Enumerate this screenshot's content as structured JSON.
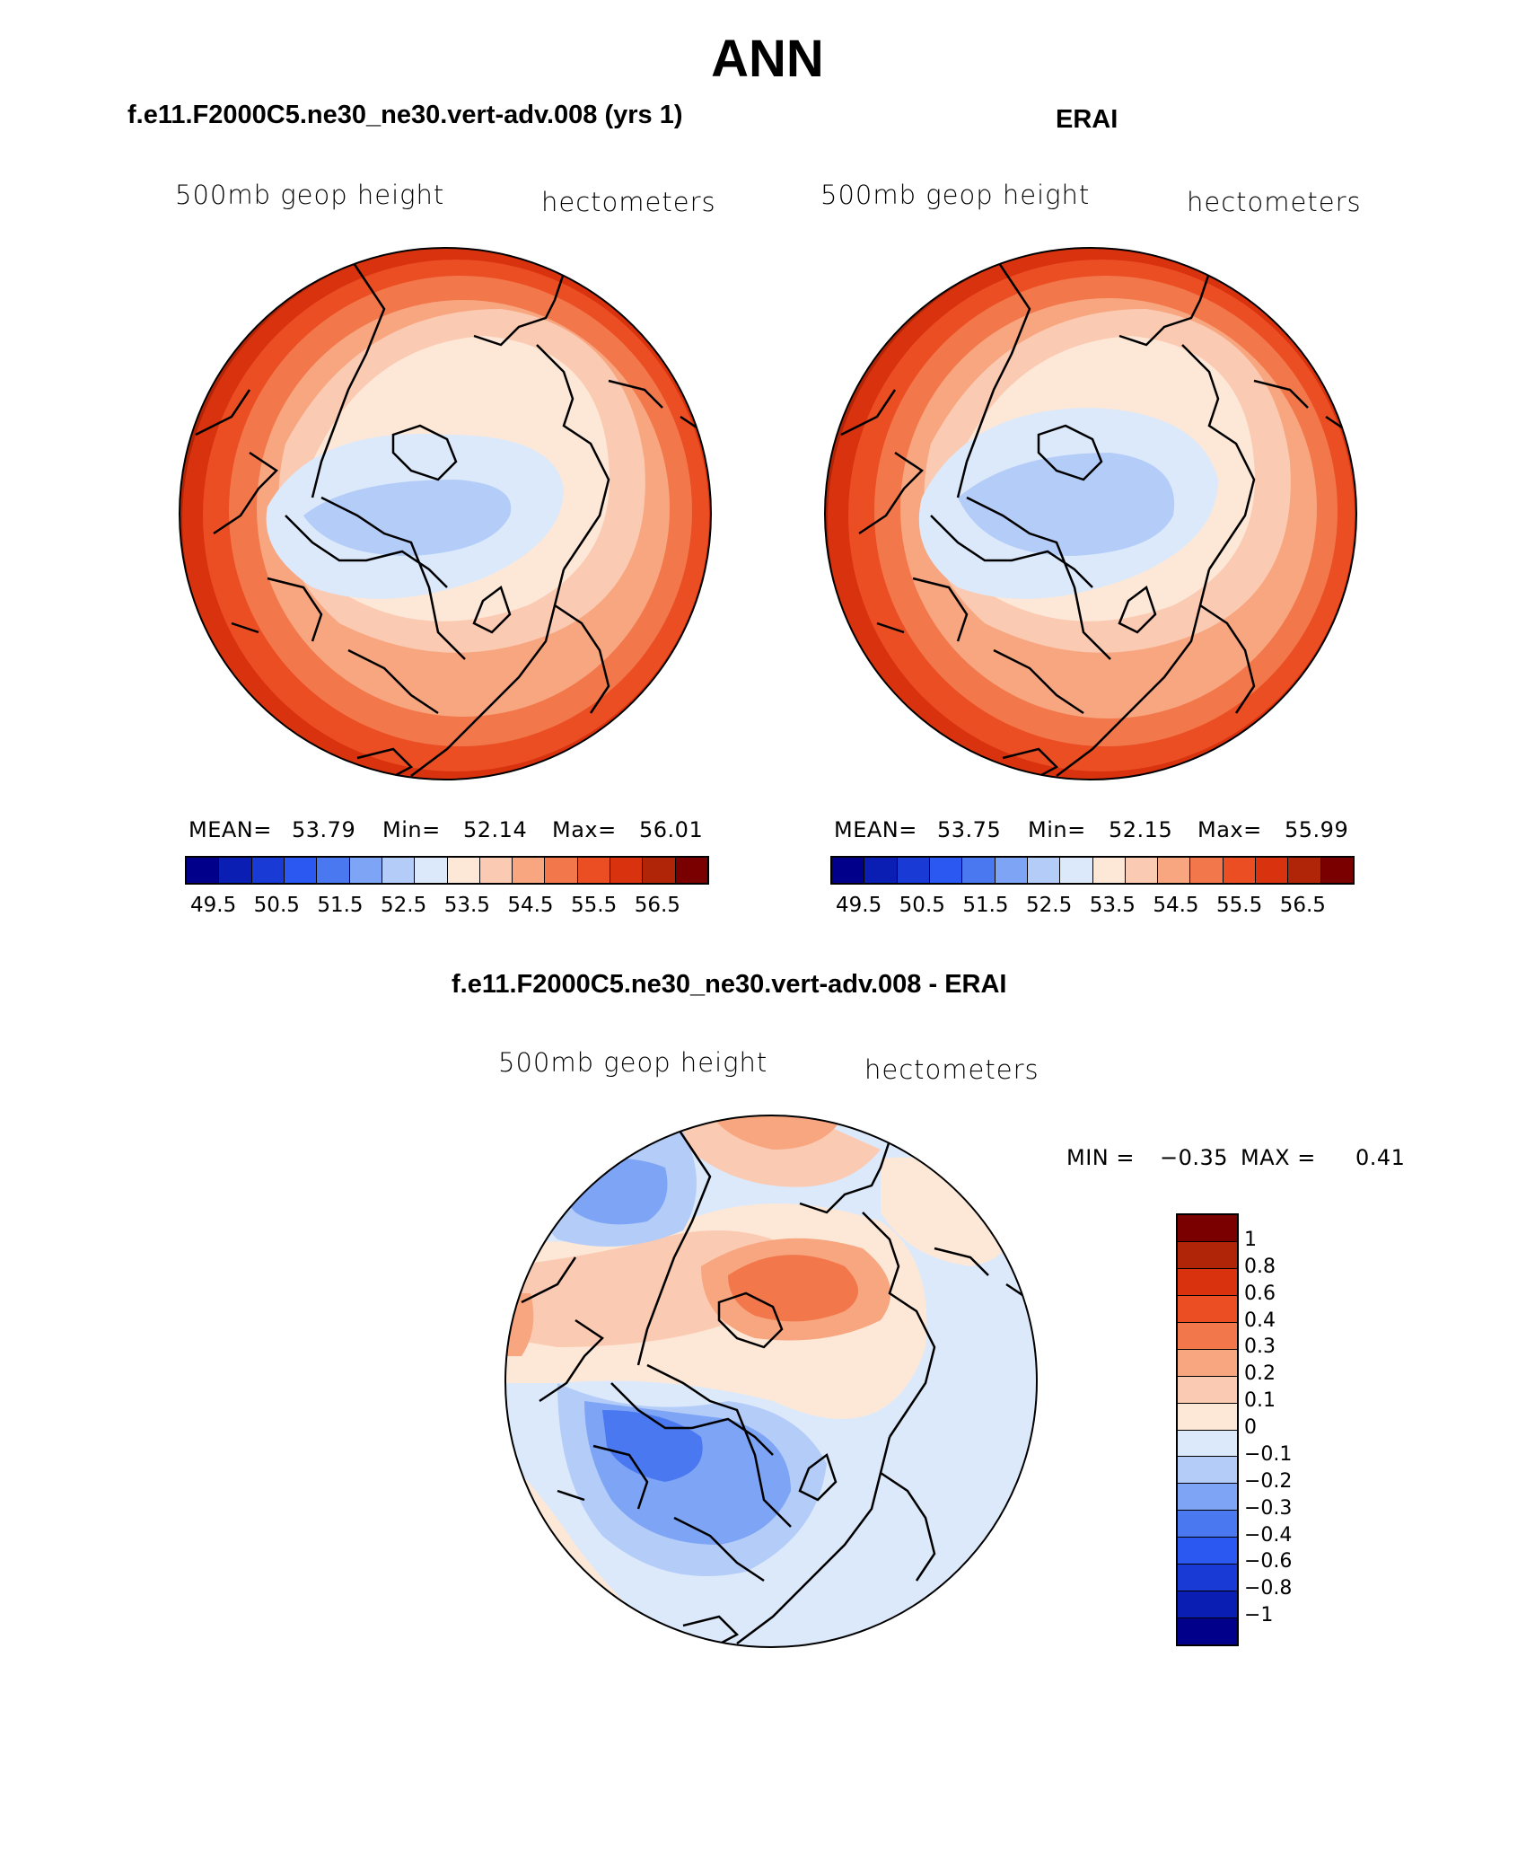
{
  "main_title": "ANN",
  "panel_model": {
    "title": "f.e11.F2000C5.ne30_ne30.vert-adv.008 (yrs 1)",
    "variable": "500mb geop height",
    "units": "hectometers",
    "stats_labels": [
      "MEAN=",
      "Min=",
      "Max="
    ],
    "stats_values": [
      "53.79",
      "52.14",
      "56.01"
    ]
  },
  "panel_obs": {
    "title": "ERAI",
    "variable": "500mb geop height",
    "units": "hectometers",
    "stats_labels": [
      "MEAN=",
      "Min=",
      "Max="
    ],
    "stats_values": [
      "53.75",
      "52.15",
      "55.99"
    ]
  },
  "panel_diff": {
    "title": "f.e11.F2000C5.ne30_ne30.vert-adv.008 - ERAI",
    "variable": "500mb geop height",
    "units": "hectometers",
    "min_label": "MIN =",
    "min_value": "−0.35",
    "max_label": "MAX =",
    "max_value": "0.41"
  },
  "abs_colorbar": {
    "colors": [
      "#00008b",
      "#0a1eb4",
      "#1a3ad6",
      "#2a58f0",
      "#4a78f0",
      "#7ea4f5",
      "#b4ccf8",
      "#dbe9fb",
      "#fde8d8",
      "#fbcab2",
      "#f8a680",
      "#f2784c",
      "#ec4e24",
      "#d8320e",
      "#b02408",
      "#7a0000"
    ],
    "tick_labels": [
      "49.5",
      "50.5",
      "51.5",
      "52.5",
      "53.5",
      "54.5",
      "55.5",
      "56.5"
    ]
  },
  "diff_colorbar": {
    "colors": [
      "#7a0000",
      "#b02408",
      "#d8320e",
      "#ec4e24",
      "#f2784c",
      "#f8a680",
      "#fbcab2",
      "#fde8d8",
      "#dbe9fb",
      "#b4ccf8",
      "#7ea4f5",
      "#4a78f0",
      "#2a58f0",
      "#1a3ad6",
      "#0a1eb4",
      "#00008b"
    ],
    "tick_labels": [
      "1",
      "0.8",
      "0.6",
      "0.4",
      "0.3",
      "0.2",
      "0.1",
      "0",
      "−0.1",
      "−0.2",
      "−0.3",
      "−0.4",
      "−0.6",
      "−0.8",
      "−1"
    ]
  }
}
